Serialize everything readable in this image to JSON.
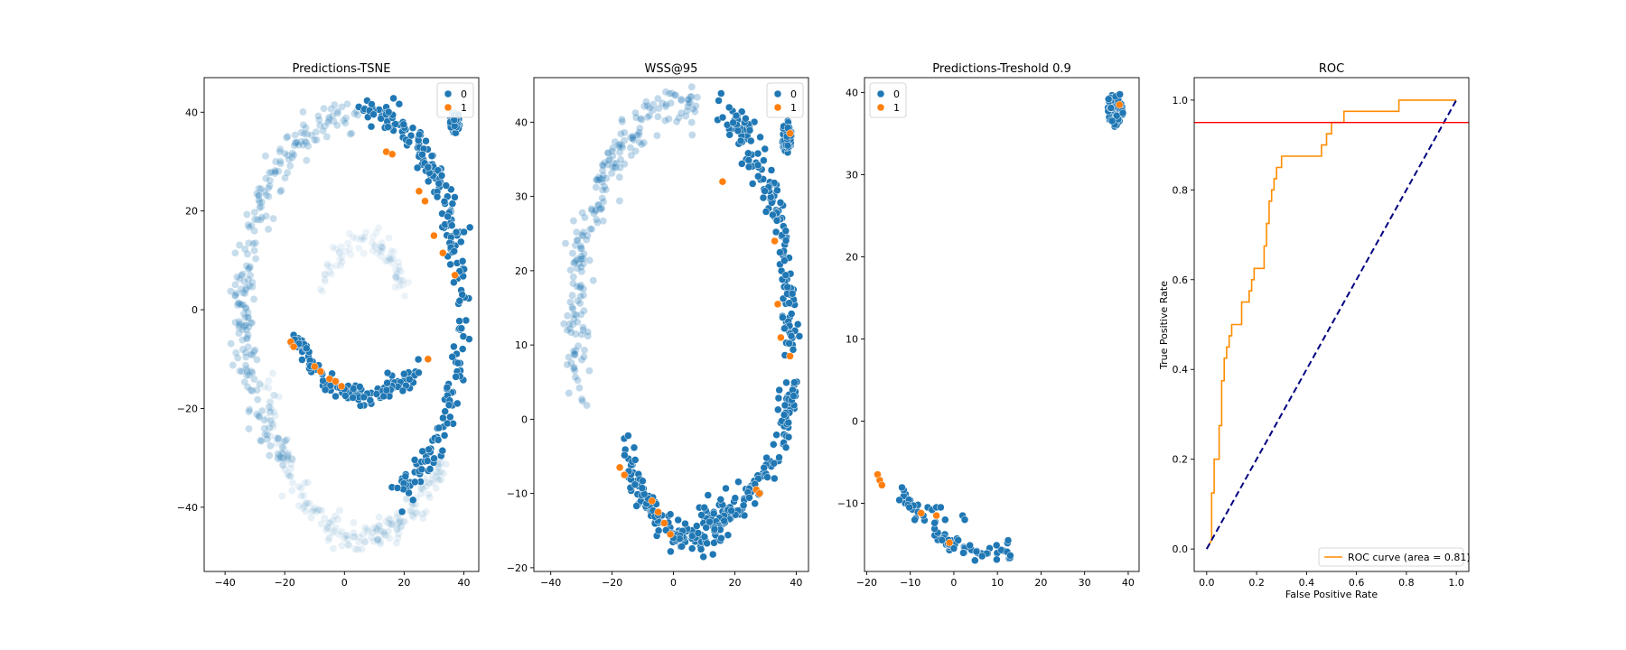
{
  "chart_data": [
    {
      "type": "scatter",
      "title": "Predictions-TSNE",
      "xlabel": "",
      "ylabel": "",
      "xlim": [
        -47,
        45
      ],
      "ylim": [
        -53,
        47
      ],
      "xticks": [
        -40,
        -20,
        0,
        20,
        40
      ],
      "yticks": [
        -40,
        -20,
        0,
        20,
        40
      ],
      "grid": false,
      "legend": {
        "position": "top-right",
        "entries": [
          "0",
          "1"
        ]
      },
      "colors": {
        "0": "#1f77b4",
        "1": "#ff7f0e"
      },
      "background_arcs": [
        {
          "cx": 6,
          "cy": 0,
          "rx": 40,
          "ry": 40,
          "t0": 95,
          "t1": 230,
          "n": 230,
          "alpha": 0.25,
          "noise": 1.8
        },
        {
          "cx": 6,
          "cy": -12,
          "rx": 31,
          "ry": 34,
          "t0": 185,
          "t1": 330,
          "n": 200,
          "alpha": 0.1,
          "noise": 1.5
        },
        {
          "cx": 6,
          "cy": 0,
          "rx": 14,
          "ry": 14,
          "t0": 15,
          "t1": 160,
          "n": 80,
          "alpha": 0.08,
          "noise": 1.2
        }
      ],
      "class0_arcs": [
        {
          "cx": 6,
          "cy": 0,
          "rx": 33,
          "ry": 40,
          "t0": 15,
          "t1": 90,
          "n": 130,
          "noise": 1.6
        },
        {
          "cx": 6,
          "cy": 0,
          "rx": 33,
          "ry": 40,
          "t0": -70,
          "t1": 15,
          "n": 100,
          "noise": 1.5
        },
        {
          "cx": 8,
          "cy": 5,
          "rx": 28,
          "ry": 22,
          "t0": 210,
          "t1": 310,
          "n": 120,
          "noise": 1.2
        }
      ],
      "blob": {
        "cx": 37,
        "cy": 38,
        "rx": 1.6,
        "ry": 2.3,
        "n": 50
      },
      "class1_points": [
        [
          -18,
          -6.5
        ],
        [
          -17,
          -7.5
        ],
        [
          -10,
          -11.5
        ],
        [
          -8,
          -12.5
        ],
        [
          -5,
          -14
        ],
        [
          -3,
          -14.5
        ],
        [
          -1,
          -15.5
        ],
        [
          14,
          32
        ],
        [
          16,
          31.5
        ],
        [
          25,
          24
        ],
        [
          27,
          22
        ],
        [
          30,
          15
        ],
        [
          33,
          11.5
        ],
        [
          37,
          7
        ],
        [
          28,
          -10
        ]
      ]
    },
    {
      "type": "scatter",
      "title": "WSS@95",
      "xlabel": "",
      "ylabel": "",
      "xlim": [
        -45.5,
        44
      ],
      "ylim": [
        -20.5,
        46
      ],
      "xticks": [
        -40,
        -20,
        0,
        20,
        40
      ],
      "yticks": [
        -20,
        -10,
        0,
        10,
        20,
        30,
        40
      ],
      "grid": false,
      "legend": {
        "position": "top-right",
        "entries": [
          "0",
          "1"
        ]
      },
      "colors": {
        "0": "#1f77b4",
        "1": "#ff7f0e"
      },
      "background_arcs": [
        {
          "cx": 4,
          "cy": 12,
          "rx": 36,
          "ry": 30,
          "t0": 85,
          "t1": 195,
          "n": 220,
          "alpha": 0.28,
          "noise": 1.6
        }
      ],
      "class0_arcs": [
        {
          "cx": 8,
          "cy": 12,
          "rx": 30,
          "ry": 30,
          "t0": -5,
          "t1": 75,
          "n": 160,
          "noise": 1.3
        },
        {
          "cx": 8,
          "cy": 6,
          "rx": 30,
          "ry": 19,
          "t0": 270,
          "t1": 355,
          "n": 120,
          "noise": 1.2
        },
        {
          "cx": 8,
          "cy": 5,
          "rx": 26,
          "ry": 21,
          "t0": 205,
          "t1": 290,
          "n": 140,
          "noise": 1.1
        }
      ],
      "blob": {
        "cx": 37,
        "cy": 38,
        "rx": 1.6,
        "ry": 2.2,
        "n": 50
      },
      "class1_points": [
        [
          -17.5,
          -6.5
        ],
        [
          -16,
          -7.5
        ],
        [
          -7,
          -11
        ],
        [
          -5,
          -12.5
        ],
        [
          -3,
          -14
        ],
        [
          -1,
          -15.5
        ],
        [
          27,
          -9.5
        ],
        [
          28,
          -10
        ],
        [
          34,
          15.5
        ],
        [
          35,
          11
        ],
        [
          38,
          8.5
        ],
        [
          33,
          24
        ],
        [
          16,
          32
        ],
        [
          38,
          38.5
        ]
      ]
    },
    {
      "type": "scatter",
      "title": "Predictions-Treshold 0.9",
      "xlabel": "",
      "ylabel": "",
      "xlim": [
        -20.5,
        42.5
      ],
      "ylim": [
        -18.3,
        41.8
      ],
      "xticks": [
        -20,
        -10,
        0,
        10,
        20,
        30,
        40
      ],
      "yticks": [
        -10,
        0,
        10,
        20,
        30,
        40
      ],
      "grid": false,
      "legend": {
        "position": "top-left",
        "entries": [
          "0",
          "1"
        ]
      },
      "colors": {
        "0": "#1f77b4",
        "1": "#ff7f0e"
      },
      "background_arcs": [],
      "class0_arcs": [
        {
          "cx": 8,
          "cy": 5,
          "rx": 26,
          "ry": 21,
          "t0": 218,
          "t1": 282,
          "n": 70,
          "noise": 0.6
        }
      ],
      "blob": {
        "cx": 37,
        "cy": 38,
        "rx": 1.9,
        "ry": 2.2,
        "n": 60
      },
      "class0_points": [
        [
          -6,
          -10.5
        ],
        [
          -5,
          -10.8
        ],
        [
          -4,
          -10.5
        ],
        [
          -7,
          -11.5
        ],
        [
          -3,
          -10.5
        ],
        [
          -2,
          -12
        ],
        [
          -1,
          -15
        ],
        [
          0,
          -15.5
        ],
        [
          1,
          -14.5
        ],
        [
          2,
          -11.5
        ],
        [
          2.5,
          -12
        ]
      ],
      "class1_points": [
        [
          -17.5,
          -6.5
        ],
        [
          -17,
          -7.2
        ],
        [
          -16.5,
          -7.8
        ],
        [
          -7.5,
          -11.2
        ],
        [
          -4,
          -11.5
        ],
        [
          -1,
          -14.8
        ],
        [
          38,
          38.5
        ]
      ]
    },
    {
      "type": "line",
      "title": "ROC",
      "xlabel": "False Positive Rate",
      "ylabel": "True Positive Rate",
      "xlim": [
        -0.05,
        1.05
      ],
      "ylim": [
        -0.05,
        1.05
      ],
      "xticks": [
        "0.0",
        "0.2",
        "0.4",
        "0.6",
        "0.8",
        "1.0"
      ],
      "yticks": [
        "0.0",
        "0.2",
        "0.4",
        "0.6",
        "0.8",
        "1.0"
      ],
      "grid": false,
      "legend": {
        "position": "bottom-right",
        "entries": [
          "ROC curve (area = 0.81)"
        ]
      },
      "series": [
        {
          "name": "ROC curve (area = 0.81)",
          "color": "#ff8c00",
          "x": [
            0,
            0.02,
            0.02,
            0.03,
            0.03,
            0.05,
            0.05,
            0.06,
            0.06,
            0.07,
            0.07,
            0.08,
            0.08,
            0.09,
            0.09,
            0.1,
            0.1,
            0.14,
            0.14,
            0.17,
            0.17,
            0.18,
            0.18,
            0.19,
            0.19,
            0.23,
            0.23,
            0.24,
            0.24,
            0.25,
            0.25,
            0.26,
            0.26,
            0.27,
            0.27,
            0.28,
            0.28,
            0.3,
            0.3,
            0.46,
            0.46,
            0.48,
            0.48,
            0.5,
            0.5,
            0.53,
            0.53,
            0.55,
            0.55,
            0.77,
            0.77,
            1.0
          ],
          "y": [
            0,
            0.02,
            0.125,
            0.125,
            0.2,
            0.2,
            0.275,
            0.275,
            0.375,
            0.375,
            0.425,
            0.425,
            0.45,
            0.45,
            0.475,
            0.475,
            0.5,
            0.5,
            0.55,
            0.55,
            0.575,
            0.575,
            0.6,
            0.6,
            0.625,
            0.625,
            0.675,
            0.675,
            0.725,
            0.725,
            0.775,
            0.775,
            0.8,
            0.8,
            0.825,
            0.825,
            0.85,
            0.85,
            0.875,
            0.875,
            0.9,
            0.9,
            0.925,
            0.925,
            0.95,
            0.95,
            0.95,
            0.95,
            0.975,
            0.975,
            1.0,
            1.0
          ]
        },
        {
          "name": "",
          "color": "#000080",
          "dashed": true,
          "x": [
            0,
            1
          ],
          "y": [
            0,
            1
          ]
        }
      ],
      "hline": {
        "y": 0.95,
        "color": "#ff0000"
      }
    }
  ]
}
